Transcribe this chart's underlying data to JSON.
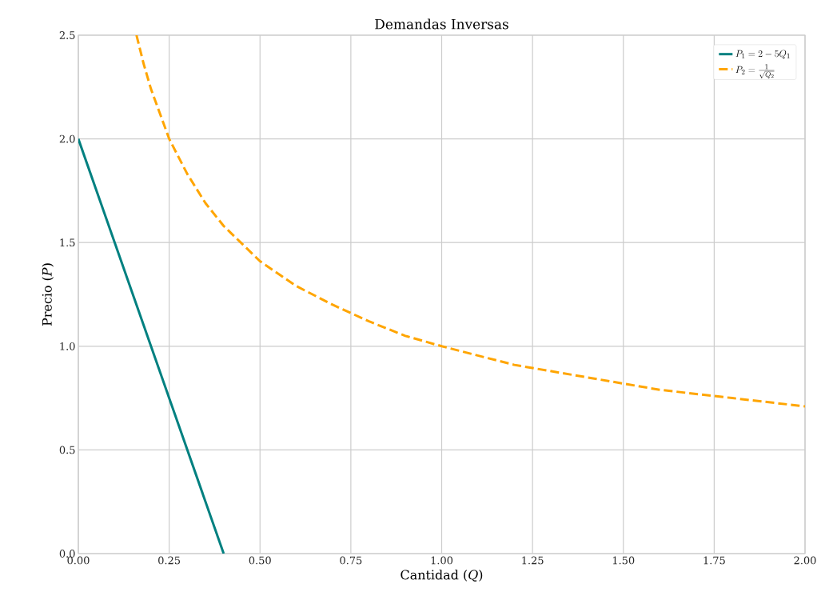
{
  "chart_data": {
    "type": "line",
    "title": "Demandas Inversas",
    "xlabel": "Cantidad (*Q*)",
    "ylabel": "Precio (*P*)",
    "xlim": [
      0,
      2
    ],
    "ylim": [
      0,
      2.5
    ],
    "xticks": [
      {
        "value": 0,
        "label": "0.00"
      },
      {
        "value": 0.25,
        "label": "0.25"
      },
      {
        "value": 0.5,
        "label": "0.50"
      },
      {
        "value": 0.75,
        "label": "0.75"
      },
      {
        "value": 1,
        "label": "1.00"
      },
      {
        "value": 1.25,
        "label": "1.25"
      },
      {
        "value": 1.5,
        "label": "1.50"
      },
      {
        "value": 1.75,
        "label": "1.75"
      },
      {
        "value": 2,
        "label": "2.00"
      }
    ],
    "yticks": [
      {
        "value": 0,
        "label": "0.0"
      },
      {
        "value": 0.5,
        "label": "0.5"
      },
      {
        "value": 1,
        "label": "1.0"
      },
      {
        "value": 1.5,
        "label": "1.5"
      },
      {
        "value": 2,
        "label": "2.0"
      },
      {
        "value": 2.5,
        "label": "2.5"
      }
    ],
    "grid": true,
    "legend": "top right",
    "series": [
      {
        "name": "P_1 = 2 - 5Q_1",
        "color": "#008080",
        "line_style": "solid",
        "x": [
          0,
          0.4
        ],
        "values": [
          2,
          0
        ]
      },
      {
        "name": "P_2 = \\frac{1}{\\sqrt{Q_2}}",
        "color": "#ffa500",
        "line_style": "dashed",
        "x": [
          0.16,
          0.18,
          0.2,
          0.25,
          0.3,
          0.35,
          0.4,
          0.5,
          0.6,
          0.7,
          0.8,
          0.9,
          1.0,
          1.2,
          1.4,
          1.6,
          1.8,
          2.0
        ],
        "values": [
          2.5,
          2.36,
          2.24,
          2.0,
          1.83,
          1.69,
          1.58,
          1.41,
          1.29,
          1.2,
          1.12,
          1.05,
          1.0,
          0.91,
          0.85,
          0.79,
          0.75,
          0.71
        ]
      }
    ]
  }
}
